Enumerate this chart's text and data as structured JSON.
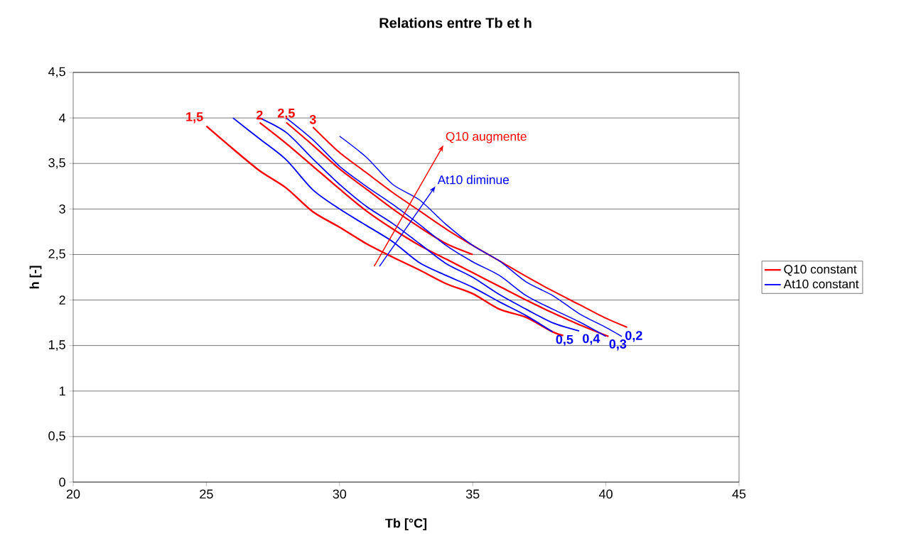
{
  "chart_data": {
    "type": "line",
    "title": "Relations entre Tb et h",
    "xlabel": "Tb [°C]",
    "ylabel": "h [-]",
    "xlim": [
      20,
      45
    ],
    "xticks": [
      20,
      25,
      30,
      35,
      40,
      45
    ],
    "ylim": [
      0,
      4.5
    ],
    "yticks": [
      0,
      {
        "value": 0.5,
        "label": "0,5"
      },
      1,
      {
        "value": 1.5,
        "label": "1,5"
      },
      2,
      {
        "value": 2.5,
        "label": "2,5"
      },
      3,
      {
        "value": 3.5,
        "label": "3,5"
      },
      4,
      {
        "value": 4.5,
        "label": "4,5"
      }
    ],
    "grid": "y",
    "legend": "right",
    "marker": "none",
    "line_style": "solid",
    "series": [
      {
        "name": "Q10 constant",
        "color": "#ff0000",
        "x": [
          25,
          26,
          27,
          28,
          29,
          30,
          31,
          32,
          33,
          34,
          35,
          36,
          37,
          38,
          38.4
        ],
        "values": [
          3.91,
          3.66,
          3.42,
          3.23,
          2.97,
          2.8,
          2.62,
          2.47,
          2.33,
          2.18,
          2.07,
          1.9,
          1.81,
          1.65,
          1.61
        ]
      },
      {
        "color": "#ff0000",
        "x": [
          27,
          28,
          29,
          30,
          31,
          32,
          33,
          34,
          35,
          36,
          37,
          38,
          39,
          40.1
        ],
        "values": [
          3.95,
          3.72,
          3.47,
          3.22,
          2.98,
          2.78,
          2.6,
          2.45,
          2.3,
          2.15,
          2.0,
          1.86,
          1.73,
          1.6
        ]
      },
      {
        "color": "#ff0000",
        "x": [
          28,
          29,
          30,
          31,
          32,
          33,
          34,
          35
        ],
        "values": [
          3.95,
          3.7,
          3.44,
          3.22,
          3.0,
          2.8,
          2.62,
          2.5
        ]
      },
      {
        "color": "#ff0000",
        "x": [
          29,
          30,
          31,
          32,
          33,
          34,
          35,
          36,
          37,
          38,
          39,
          40,
          40.8
        ],
        "values": [
          3.9,
          3.62,
          3.4,
          3.18,
          2.98,
          2.78,
          2.6,
          2.43,
          2.26,
          2.1,
          1.95,
          1.8,
          1.7
        ]
      },
      {
        "name": "At10 constant",
        "color": "#0000ff",
        "x": [
          26,
          27,
          28,
          29,
          30,
          31,
          32,
          33,
          34,
          35,
          36,
          37,
          38
        ],
        "values": [
          4.0,
          3.77,
          3.54,
          3.21,
          3.0,
          2.82,
          2.64,
          2.41,
          2.27,
          2.14,
          1.98,
          1.83,
          1.65
        ]
      },
      {
        "color": "#0000ff",
        "x": [
          27,
          28,
          29,
          30,
          31,
          32,
          33,
          34,
          35,
          36,
          37,
          38,
          39
        ],
        "values": [
          4.0,
          3.84,
          3.55,
          3.27,
          3.03,
          2.84,
          2.62,
          2.4,
          2.25,
          2.06,
          1.9,
          1.75,
          1.66
        ]
      },
      {
        "color": "#0000ff",
        "x": [
          28,
          29,
          30,
          31,
          32,
          33,
          34,
          35,
          36,
          37,
          38,
          39,
          40
        ],
        "values": [
          4.0,
          3.76,
          3.47,
          3.25,
          3.05,
          2.83,
          2.6,
          2.42,
          2.27,
          2.05,
          1.9,
          1.76,
          1.6
        ]
      },
      {
        "color": "#0000ff",
        "x": [
          30,
          31,
          32,
          33,
          34,
          35,
          36,
          37,
          38,
          39,
          40,
          40.6
        ],
        "values": [
          3.8,
          3.57,
          3.27,
          3.1,
          2.83,
          2.6,
          2.43,
          2.2,
          2.05,
          1.85,
          1.7,
          1.6
        ]
      }
    ],
    "annotations": [
      {
        "text": "1,5",
        "x": 25,
        "y": 3.91
      },
      {
        "text": "2",
        "x": 27,
        "y": 3.95
      },
      {
        "text": "2,5",
        "x": 28,
        "y": 3.95
      },
      {
        "text": "3",
        "x": 29,
        "y": 3.9
      },
      {
        "text": "0,5",
        "x": 38,
        "y": 1.65
      },
      {
        "text": "0,4",
        "x": 39,
        "y": 1.66
      },
      {
        "text": "0,3",
        "x": 40,
        "y": 1.6
      },
      {
        "text": "0,2",
        "x": 40.6,
        "y": 1.6
      },
      "Q10 augmente",
      "At10 diminue"
    ]
  }
}
